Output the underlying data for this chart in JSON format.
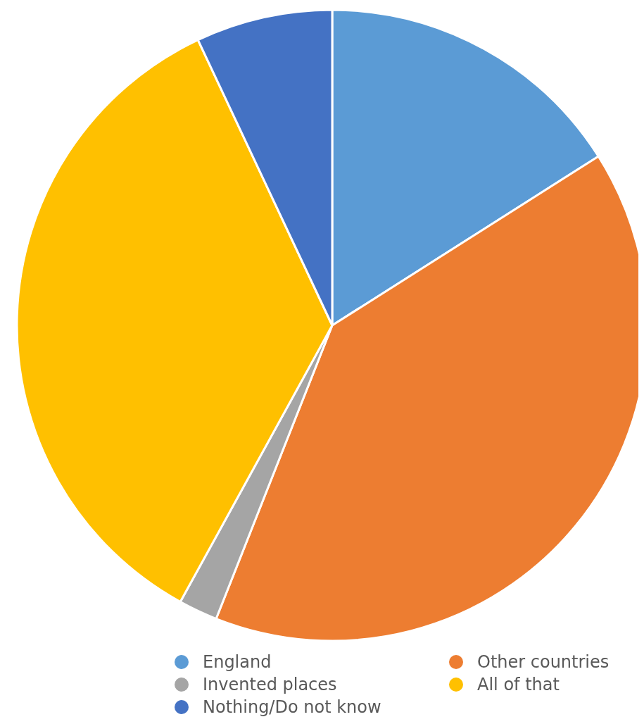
{
  "chart_data": {
    "type": "pie",
    "categories": [
      "England",
      "Other countries",
      "Invented places",
      "All of that",
      "Nothing/Do not know"
    ],
    "values": [
      16,
      40,
      2,
      35,
      7
    ],
    "colors": [
      "#5b9bd5",
      "#ed7d31",
      "#a5a5a5",
      "#ffc000",
      "#4472c4"
    ],
    "legend": "bottom"
  }
}
